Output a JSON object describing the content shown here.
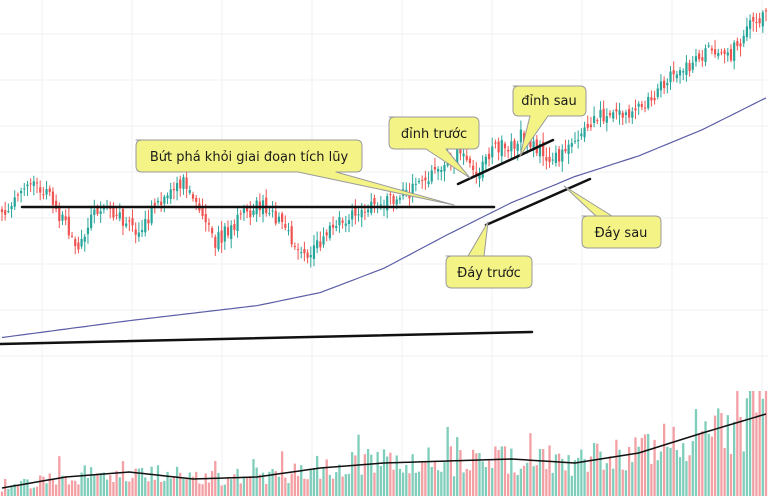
{
  "chart_data": {
    "type": "candlestick",
    "title": "",
    "xlabel": "",
    "ylabel": "",
    "grid": true,
    "legend": "none",
    "price_range": [
      0,
      100
    ],
    "volume_range": [
      0,
      100
    ],
    "colors": {
      "up": "#26a69a",
      "down": "#ef5350",
      "up_volume": "#7fcdbb",
      "down_volume": "#f3a0a4",
      "moving_average": "#5b5ea6",
      "volume_average": "#111111",
      "trend_line": "#111111",
      "callout_fill": "#f4f386",
      "callout_stroke": "#9a9a9a",
      "grid": "#eef0f3"
    },
    "key_price_points": [
      [
        0,
        63
      ],
      [
        4,
        68
      ],
      [
        10,
        78
      ],
      [
        15,
        70
      ],
      [
        20,
        56
      ],
      [
        24,
        45
      ],
      [
        28,
        60
      ],
      [
        33,
        67
      ],
      [
        38,
        58
      ],
      [
        43,
        50
      ],
      [
        48,
        67
      ],
      [
        53,
        74
      ],
      [
        57,
        79
      ],
      [
        62,
        65
      ],
      [
        67,
        47
      ],
      [
        72,
        55
      ],
      [
        77,
        63
      ],
      [
        82,
        68
      ],
      [
        87,
        58
      ],
      [
        91,
        48
      ],
      [
        96,
        40
      ],
      [
        101,
        49
      ],
      [
        106,
        57
      ],
      [
        111,
        62
      ],
      [
        116,
        66
      ],
      [
        121,
        69
      ],
      [
        126,
        72
      ],
      [
        131,
        77
      ],
      [
        136,
        84
      ],
      [
        141,
        91
      ],
      [
        144,
        95
      ],
      [
        146,
        90
      ],
      [
        149,
        82
      ],
      [
        153,
        93
      ],
      [
        157,
        100
      ],
      [
        160,
        98
      ],
      [
        163,
        104
      ],
      [
        166,
        101
      ],
      [
        169,
        96
      ],
      [
        173,
        90
      ],
      [
        176,
        93
      ],
      [
        181,
        104
      ],
      [
        187,
        113
      ],
      [
        193,
        118
      ],
      [
        198,
        114
      ],
      [
        204,
        124
      ],
      [
        210,
        136
      ],
      [
        216,
        142
      ],
      [
        222,
        150
      ],
      [
        228,
        145
      ],
      [
        234,
        160
      ],
      [
        240,
        171
      ]
    ],
    "moving_average_points": [
      [
        0,
        0
      ],
      [
        40,
        9
      ],
      [
        80,
        17
      ],
      [
        100,
        24
      ],
      [
        120,
        37
      ],
      [
        140,
        55
      ],
      [
        160,
        72
      ],
      [
        180,
        86
      ],
      [
        200,
        97
      ],
      [
        220,
        111
      ],
      [
        240,
        128
      ]
    ],
    "volume_average_points": [
      [
        0,
        8
      ],
      [
        20,
        19
      ],
      [
        40,
        24
      ],
      [
        60,
        17
      ],
      [
        80,
        19
      ],
      [
        100,
        28
      ],
      [
        120,
        33
      ],
      [
        140,
        35
      ],
      [
        160,
        37
      ],
      [
        180,
        33
      ],
      [
        200,
        43
      ],
      [
        220,
        63
      ],
      [
        240,
        82
      ]
    ],
    "annotations": [
      {
        "name": "breakout",
        "text": "Bứt phá khỏi giai đoạn tích lũy"
      },
      {
        "name": "previous-peak",
        "text": "đỉnh trước"
      },
      {
        "name": "next-peak",
        "text": "đỉnh sau"
      },
      {
        "name": "previous-trough",
        "text": "Đáy trước"
      },
      {
        "name": "next-trough",
        "text": "Đáy sau"
      }
    ]
  }
}
